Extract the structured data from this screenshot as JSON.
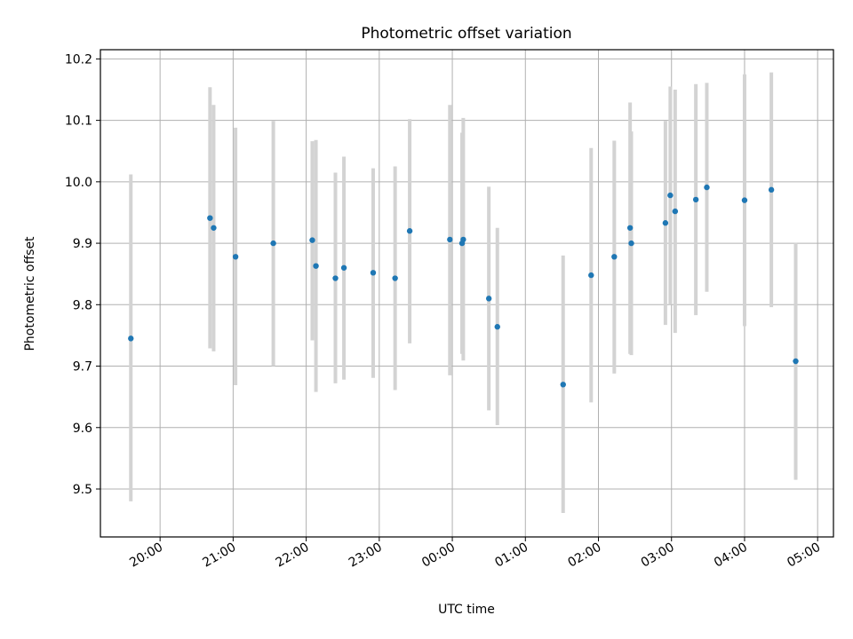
{
  "chart_data": {
    "type": "scatter",
    "title": "Photometric offset variation",
    "xlabel": "UTC time",
    "ylabel": "Photometric offset",
    "grid": true,
    "legend": "none",
    "x_tick_labels": [
      "20:00",
      "21:00",
      "22:00",
      "23:00",
      "00:00",
      "01:00",
      "02:00",
      "03:00",
      "04:00",
      "05:00"
    ],
    "x_tick_hours": [
      20,
      21,
      22,
      23,
      24,
      25,
      26,
      27,
      28,
      29
    ],
    "y_ticks": [
      9.5,
      9.6,
      9.7,
      9.8,
      9.9,
      10.0,
      10.1,
      10.2
    ],
    "y_tick_labels": [
      "9.5",
      "9.6",
      "9.7",
      "9.8",
      "9.9",
      "10.0",
      "10.1",
      "10.2"
    ],
    "xlim": [
      "19:11",
      "05:13"
    ],
    "ylim": [
      9.422,
      10.215
    ],
    "colors": {
      "point": "#1f77b4",
      "errorbar": "#d3d3d3",
      "grid": "#b0b0b0"
    },
    "points": [
      {
        "x": "19:36",
        "y": 9.745,
        "low": 9.48,
        "high": 10.012
      },
      {
        "x": "20:41",
        "y": 9.941,
        "low": 9.729,
        "high": 10.154
      },
      {
        "x": "20:44",
        "y": 9.925,
        "low": 9.724,
        "high": 10.125
      },
      {
        "x": "21:02",
        "y": 9.878,
        "low": 9.669,
        "high": 10.088
      },
      {
        "x": "21:33",
        "y": 9.9,
        "low": 9.7,
        "high": 10.099
      },
      {
        "x": "22:05",
        "y": 9.905,
        "low": 9.742,
        "high": 10.066
      },
      {
        "x": "22:08",
        "y": 9.863,
        "low": 9.658,
        "high": 10.068
      },
      {
        "x": "22:24",
        "y": 9.843,
        "low": 9.672,
        "high": 10.015
      },
      {
        "x": "22:31",
        "y": 9.86,
        "low": 9.678,
        "high": 10.041
      },
      {
        "x": "22:55",
        "y": 9.852,
        "low": 9.681,
        "high": 10.022
      },
      {
        "x": "23:13",
        "y": 9.843,
        "low": 9.661,
        "high": 10.025
      },
      {
        "x": "23:25",
        "y": 9.92,
        "low": 9.737,
        "high": 10.102
      },
      {
        "x": "23:58",
        "y": 9.906,
        "low": 9.685,
        "high": 10.125
      },
      {
        "x": "00:08",
        "y": 9.9,
        "low": 9.72,
        "high": 10.08
      },
      {
        "x": "00:09",
        "y": 9.906,
        "low": 9.709,
        "high": 10.104
      },
      {
        "x": "00:30",
        "y": 9.81,
        "low": 9.628,
        "high": 9.992
      },
      {
        "x": "00:37",
        "y": 9.764,
        "low": 9.604,
        "high": 9.925
      },
      {
        "x": "01:31",
        "y": 9.67,
        "low": 9.461,
        "high": 9.88
      },
      {
        "x": "01:54",
        "y": 9.848,
        "low": 9.641,
        "high": 10.055
      },
      {
        "x": "02:13",
        "y": 9.878,
        "low": 9.688,
        "high": 10.067
      },
      {
        "x": "02:26",
        "y": 9.925,
        "low": 9.72,
        "high": 10.129
      },
      {
        "x": "02:27",
        "y": 9.9,
        "low": 9.718,
        "high": 10.082
      },
      {
        "x": "02:55",
        "y": 9.933,
        "low": 9.767,
        "high": 10.099
      },
      {
        "x": "02:59",
        "y": 9.978,
        "low": 9.8,
        "high": 10.155
      },
      {
        "x": "03:03",
        "y": 9.952,
        "low": 9.754,
        "high": 10.15
      },
      {
        "x": "03:20",
        "y": 9.971,
        "low": 9.783,
        "high": 10.159
      },
      {
        "x": "03:29",
        "y": 9.991,
        "low": 9.821,
        "high": 10.161
      },
      {
        "x": "04:00",
        "y": 9.97,
        "low": 9.765,
        "high": 10.175
      },
      {
        "x": "04:22",
        "y": 9.987,
        "low": 9.796,
        "high": 10.178
      },
      {
        "x": "04:42",
        "y": 9.708,
        "low": 9.515,
        "high": 9.901
      }
    ]
  }
}
